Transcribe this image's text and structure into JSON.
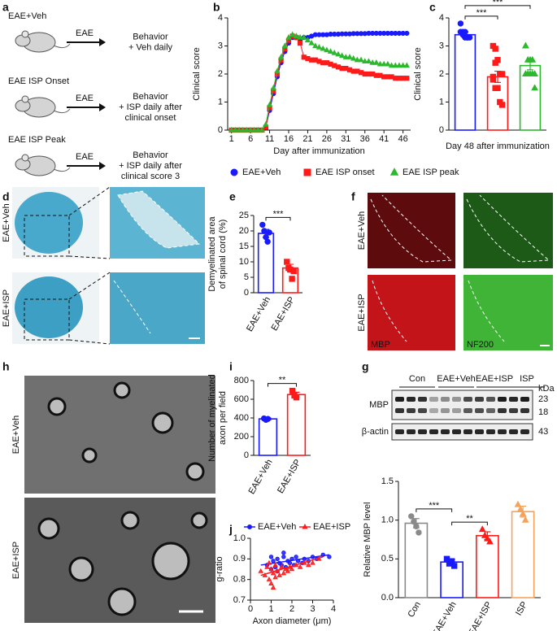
{
  "panel_labels": [
    "a",
    "b",
    "c",
    "d",
    "e",
    "f",
    "g",
    "h",
    "i",
    "j"
  ],
  "diagram": {
    "arrow_label": "EAE",
    "groups": [
      {
        "title": "EAE+Veh",
        "color": "#1a3cf5",
        "outcome": [
          "Behavior",
          "+ Veh daily"
        ]
      },
      {
        "title": "EAE ISP Onset",
        "color": "#e8161b",
        "outcome": [
          "Behavior",
          "+ ISP daily after",
          "clinical onset"
        ]
      },
      {
        "title": "EAE ISP Peak",
        "color": "#2f9e2a",
        "outcome": [
          "Behavior",
          "+ ISP daily after",
          "clinical score 3"
        ]
      }
    ]
  },
  "images": {
    "d_rows": [
      "EAE+Veh",
      "EAE+ISP"
    ],
    "f_rows": [
      "EAE+Veh",
      "EAE+ISP"
    ],
    "f_stains": [
      "MBP",
      "NF200"
    ],
    "h_rows": [
      "EAE+Veh",
      "EAE+ISP"
    ]
  },
  "blot": {
    "lanes": [
      "Con",
      "EAE+Veh",
      "EAE+ISP",
      "ISP"
    ],
    "unit": "kDa",
    "rows": [
      "MBP",
      "β-actin"
    ],
    "sizes": [
      23,
      18,
      43
    ]
  },
  "chart_data": [
    {
      "type": "line",
      "xlabel": "Day after immunization",
      "ylabel": "Clinical score",
      "x": [
        1,
        2,
        3,
        4,
        5,
        6,
        7,
        8,
        9,
        10,
        11,
        12,
        13,
        14,
        15,
        16,
        17,
        18,
        19,
        20,
        21,
        22,
        23,
        24,
        25,
        26,
        27,
        28,
        29,
        30,
        31,
        32,
        33,
        34,
        35,
        36,
        37,
        38,
        39,
        40,
        41,
        42,
        43,
        44,
        45,
        46,
        47
      ],
      "xlim": [
        0,
        48
      ],
      "xticks": [
        1,
        6,
        11,
        16,
        21,
        26,
        31,
        36,
        41,
        46
      ],
      "ylim": [
        0,
        4
      ],
      "yticks": [
        0,
        1,
        2,
        3,
        4
      ],
      "series": [
        {
          "name": "EAE+Veh",
          "color": "#1a1aff",
          "marker": "circle",
          "values": [
            0,
            0,
            0,
            0,
            0,
            0,
            0,
            0,
            0,
            0.1,
            0.7,
            1.3,
            1.9,
            2.4,
            2.8,
            3.1,
            3.3,
            3.3,
            3.2,
            3.3,
            3.3,
            3.35,
            3.4,
            3.4,
            3.4,
            3.4,
            3.42,
            3.42,
            3.42,
            3.43,
            3.43,
            3.43,
            3.44,
            3.44,
            3.44,
            3.44,
            3.45,
            3.45,
            3.45,
            3.45,
            3.45,
            3.45,
            3.45,
            3.45,
            3.45,
            3.45,
            3.45
          ]
        },
        {
          "name": "EAE ISP onset",
          "color": "#ff1a1a",
          "marker": "square",
          "values": [
            0,
            0,
            0,
            0,
            0,
            0,
            0,
            0,
            0,
            0.1,
            0.8,
            1.4,
            2.0,
            2.5,
            2.9,
            3.2,
            3.35,
            3.3,
            3.1,
            2.6,
            2.55,
            2.5,
            2.5,
            2.45,
            2.4,
            2.4,
            2.35,
            2.3,
            2.25,
            2.2,
            2.2,
            2.15,
            2.1,
            2.1,
            2.05,
            2.0,
            2.0,
            2.0,
            1.95,
            1.95,
            1.9,
            1.9,
            1.9,
            1.85,
            1.85,
            1.85,
            1.85
          ]
        },
        {
          "name": "EAE ISP peak",
          "color": "#2db82d",
          "marker": "triangle",
          "values": [
            0,
            0,
            0,
            0,
            0,
            0,
            0,
            0,
            0,
            0.2,
            0.9,
            1.5,
            2.1,
            2.6,
            3.0,
            3.3,
            3.4,
            3.35,
            3.3,
            3.3,
            3.2,
            3.1,
            3.0,
            2.95,
            2.9,
            2.85,
            2.8,
            2.75,
            2.7,
            2.65,
            2.6,
            2.6,
            2.55,
            2.5,
            2.5,
            2.45,
            2.45,
            2.4,
            2.4,
            2.35,
            2.35,
            2.35,
            2.3,
            2.3,
            2.3,
            2.3,
            2.3
          ]
        }
      ]
    },
    {
      "type": "bar",
      "xlabel": "Day 48 after immunization",
      "ylabel": "Clinical score",
      "categories": [
        null,
        null,
        null
      ],
      "values": [
        3.4,
        1.9,
        2.3
      ],
      "errors": [
        0.1,
        0.2,
        0.15
      ],
      "colors": [
        "#1a1aff",
        "#ff1a1a",
        "#2db82d"
      ],
      "markers": [
        "circle",
        "square",
        "triangle"
      ],
      "points": [
        [
          3.8,
          3.5,
          3.3,
          3.3,
          3.3,
          3.5,
          3.4,
          3.5,
          3.3
        ],
        [
          3.0,
          2.9,
          2.5,
          2.0,
          2.0,
          1.9,
          1.5,
          1.5,
          1.0,
          0.9,
          1.8,
          2.4
        ],
        [
          3.0,
          2.5,
          2.5,
          2.0,
          2.0,
          2.0,
          2.0,
          2.0,
          2.5,
          1.5,
          3.0
        ]
      ],
      "ylim": [
        0,
        4
      ],
      "yticks": [
        0,
        1,
        2,
        3,
        4
      ],
      "significance": [
        {
          "from": 0,
          "to": 1,
          "label": "***"
        },
        {
          "from": 0,
          "to": 2,
          "label": "***"
        }
      ]
    },
    {
      "type": "bar",
      "ylabel": [
        "Demyelinated area",
        "of spinal cord (%)"
      ],
      "categories": [
        "EAE+Veh",
        "EAE+ISP"
      ],
      "values": [
        19.2,
        8.0
      ],
      "errors": [
        1.3,
        1.2
      ],
      "colors": [
        "#1a1aff",
        "#ff1a1a"
      ],
      "markers": [
        "circle",
        "square"
      ],
      "points": [
        [
          22,
          20,
          18,
          16.5,
          19.5
        ],
        [
          10,
          8,
          7.5,
          4.5,
          7
        ]
      ],
      "ylim": [
        0,
        25
      ],
      "yticks": [
        0,
        5,
        10,
        15,
        20,
        25
      ],
      "significance": [
        {
          "from": 0,
          "to": 1,
          "label": "***"
        }
      ]
    },
    {
      "type": "bar",
      "ylabel": [
        "Number of myelinated",
        "axon per field"
      ],
      "categories": [
        "EAE+Veh",
        "EAE+ISP"
      ],
      "values": [
        390,
        650
      ],
      "errors": [
        10,
        25
      ],
      "colors": [
        "#1a1aff",
        "#ff1a1a"
      ],
      "markers": [
        "circle",
        "square"
      ],
      "points": [
        [
          395,
          380,
          390
        ],
        [
          690,
          640,
          620
        ]
      ],
      "ylim": [
        0,
        800
      ],
      "yticks": [
        0,
        200,
        400,
        600,
        800
      ],
      "significance": [
        {
          "from": 0,
          "to": 1,
          "label": "**"
        }
      ]
    },
    {
      "type": "bar",
      "ylabel": "Relative MBP level",
      "categories": [
        "Con",
        "EAE+Veh",
        "EAE+ISP",
        "ISP"
      ],
      "values": [
        0.96,
        0.46,
        0.8,
        1.11
      ],
      "errors": [
        0.06,
        0.03,
        0.05,
        0.07
      ],
      "colors": [
        "#8a8a8a",
        "#1a1aff",
        "#ff1a1a",
        "#f5a35a"
      ],
      "markers": [
        "circle",
        "square",
        "triangle",
        "triangle"
      ],
      "points": [
        [
          1.05,
          0.98,
          0.92,
          0.84
        ],
        [
          0.5,
          0.44,
          0.47,
          0.41
        ],
        [
          0.88,
          0.8,
          0.76,
          0.72
        ],
        [
          1.2,
          1.14,
          1.08,
          1.0
        ]
      ],
      "ylim": [
        0,
        1.5
      ],
      "yticks": [
        {
          "value": 0,
          "label": "0.0"
        },
        0.5,
        {
          "value": 1,
          "label": "1.0"
        },
        1.5
      ],
      "significance": [
        {
          "from": 0,
          "to": 1,
          "label": "***"
        },
        {
          "from": 1,
          "to": 2,
          "label": "**"
        }
      ]
    },
    {
      "type": "scatter",
      "xlabel": "Axon diameter (μm)",
      "ylabel": "g-ratio",
      "xlim": [
        0,
        4
      ],
      "xticks": [
        0,
        1,
        2,
        3,
        4
      ],
      "ylim": [
        0.7,
        1.0
      ],
      "yticks": [
        0.7,
        0.8,
        0.9,
        {
          "value": 1,
          "label": "1.0"
        }
      ],
      "series": [
        {
          "name": "EAE+Veh",
          "color": "#1a1aff",
          "marker": "circle",
          "x": [
            0.8,
            1.0,
            1.1,
            1.2,
            1.3,
            1.4,
            1.5,
            1.6,
            1.7,
            1.8,
            1.9,
            2.0,
            2.1,
            2.2,
            2.3,
            2.5,
            2.6,
            2.8,
            3.0,
            3.2,
            3.5,
            3.8,
            1.0,
            1.3,
            1.6
          ],
          "y": [
            0.87,
            0.85,
            0.89,
            0.86,
            0.9,
            0.88,
            0.87,
            0.91,
            0.86,
            0.89,
            0.88,
            0.9,
            0.87,
            0.91,
            0.89,
            0.88,
            0.9,
            0.89,
            0.91,
            0.9,
            0.92,
            0.91,
            0.91,
            0.84,
            0.93
          ],
          "fit": {
            "x": [
              0.5,
              3.8
            ],
            "y": [
              0.87,
              0.92
            ]
          }
        },
        {
          "name": "EAE+ISP",
          "color": "#ff1a1a",
          "marker": "triangle",
          "x": [
            0.5,
            0.7,
            0.8,
            0.9,
            1.0,
            1.0,
            1.1,
            1.2,
            1.2,
            1.3,
            1.4,
            1.5,
            1.6,
            1.7,
            1.8,
            1.9,
            2.0,
            2.2,
            2.4,
            2.6,
            2.8,
            3.0,
            3.3,
            1.1,
            0.9
          ],
          "y": [
            0.84,
            0.82,
            0.86,
            0.8,
            0.78,
            0.85,
            0.83,
            0.81,
            0.87,
            0.84,
            0.82,
            0.86,
            0.83,
            0.85,
            0.84,
            0.86,
            0.85,
            0.87,
            0.86,
            0.88,
            0.87,
            0.88,
            0.9,
            0.76,
            0.88
          ],
          "fit": {
            "x": [
              0.5,
              3.5
            ],
            "y": [
              0.82,
              0.91
            ]
          }
        }
      ]
    }
  ]
}
